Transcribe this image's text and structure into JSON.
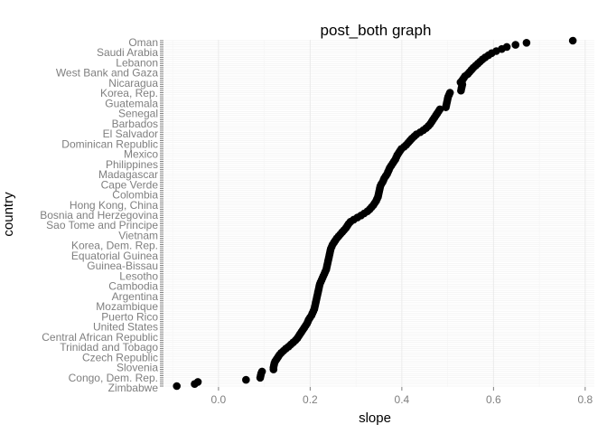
{
  "chart_data": {
    "type": "scatter",
    "title": "post_both graph",
    "xlabel": "slope",
    "ylabel": "country",
    "xlim": [
      -0.12,
      0.82
    ],
    "x_ticks": [
      0.0,
      0.2,
      0.4,
      0.6,
      0.8
    ],
    "x_tick_labels": [
      "0.0",
      "0.2",
      "0.4",
      "0.6",
      "0.8"
    ],
    "grid": true,
    "point_color": "#000000",
    "visible_country_labels": [
      "Oman",
      "Saudi Arabia",
      "Lebanon",
      "West Bank and Gaza",
      "Nicaragua",
      "Korea, Rep.",
      "Guatemala",
      "Senegal",
      "Barbados",
      "El Salvador",
      "Dominican Republic",
      "Mexico",
      "Philippines",
      "Madagascar",
      "Cape Verde",
      "Colombia",
      "Hong Kong, China",
      "Bosnia and Herzegovina",
      "Sao Tome and Principe",
      "Vietnam",
      "Korea, Dem. Rep.",
      "Equatorial Guinea",
      "Guinea-Bissau",
      "Lesotho",
      "Cambodia",
      "Argentina",
      "Mozambique",
      "Puerto Rico",
      "United States",
      "Central African Republic",
      "Trinidad and Tobago",
      "Czech Republic",
      "Slovenia",
      "Congo, Dem. Rep.",
      "Zimbabwe"
    ],
    "slopes": [
      0.773,
      0.672,
      0.648,
      0.629,
      0.618,
      0.606,
      0.596,
      0.589,
      0.582,
      0.576,
      0.571,
      0.566,
      0.561,
      0.556,
      0.552,
      0.548,
      0.544,
      0.538,
      0.535,
      0.532,
      0.528,
      0.532,
      0.531,
      0.53,
      0.529,
      0.505,
      0.503,
      0.501,
      0.5,
      0.499,
      0.498,
      0.497,
      0.496,
      0.483,
      0.48,
      0.477,
      0.474,
      0.471,
      0.468,
      0.465,
      0.462,
      0.458,
      0.453,
      0.447,
      0.44,
      0.432,
      0.427,
      0.422,
      0.418,
      0.414,
      0.41,
      0.405,
      0.399,
      0.396,
      0.393,
      0.39,
      0.388,
      0.386,
      0.383,
      0.38,
      0.377,
      0.374,
      0.372,
      0.37,
      0.368,
      0.365,
      0.362,
      0.36,
      0.358,
      0.355,
      0.353,
      0.352,
      0.351,
      0.35,
      0.349,
      0.348,
      0.346,
      0.344,
      0.341,
      0.338,
      0.334,
      0.33,
      0.325,
      0.318,
      0.311,
      0.303,
      0.295,
      0.288,
      0.284,
      0.281,
      0.278,
      0.274,
      0.27,
      0.266,
      0.262,
      0.258,
      0.255,
      0.252,
      0.249,
      0.247,
      0.245,
      0.244,
      0.243,
      0.242,
      0.241,
      0.24,
      0.239,
      0.238,
      0.237,
      0.236,
      0.235,
      0.233,
      0.231,
      0.229,
      0.227,
      0.225,
      0.223,
      0.221,
      0.22,
      0.219,
      0.218,
      0.217,
      0.216,
      0.215,
      0.214,
      0.213,
      0.212,
      0.211,
      0.21,
      0.209,
      0.207,
      0.205,
      0.203,
      0.2,
      0.197,
      0.195,
      0.193,
      0.19,
      0.187,
      0.184,
      0.181,
      0.178,
      0.175,
      0.172,
      0.168,
      0.163,
      0.158,
      0.153,
      0.147,
      0.142,
      0.137,
      0.133,
      0.13,
      0.127,
      0.124,
      0.122,
      0.121,
      0.12,
      0.12,
      0.095,
      0.093,
      0.092,
      0.091,
      0.06,
      -0.045,
      -0.052,
      -0.091
    ]
  }
}
